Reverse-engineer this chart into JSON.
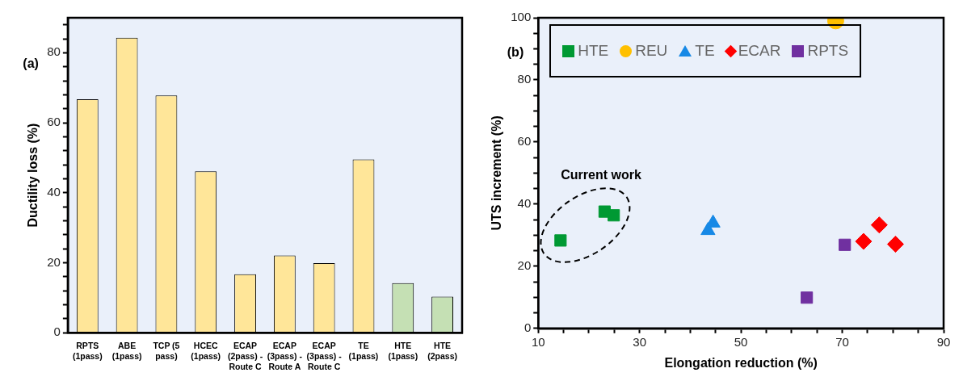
{
  "chart_data": [
    {
      "type": "bar",
      "annotations": [
        "(a)"
      ],
      "ylabel": "Ductility loss (%)",
      "categories": [
        "RPTS (1pass)",
        "ABE (1pass)",
        "TCP (5 pass)",
        "HCEC (1pass)",
        "ECAP (2pass) - Route C",
        "ECAP (3pass) - Route A",
        "ECAP (3pass) - Route C",
        "TE (1pass)",
        "HTE (1pass)",
        "HTE (2pass)"
      ],
      "values": [
        66.7,
        84.3,
        67.8,
        46.1,
        16.7,
        22.1,
        19.9,
        49.5,
        14.2,
        10.3
      ],
      "colors": [
        "#ffe699",
        "#ffe699",
        "#ffe699",
        "#ffe699",
        "#ffe699",
        "#ffe699",
        "#ffe699",
        "#ffe699",
        "#c5e0b4",
        "#c5e0b4"
      ],
      "ylim": [
        0,
        90
      ],
      "yticks": [
        0,
        {
          "value": 4,
          "label": null
        },
        {
          "value": 8,
          "label": null
        },
        {
          "value": 12,
          "label": null
        },
        {
          "value": 16,
          "label": null
        },
        20,
        {
          "value": 24,
          "label": null
        },
        {
          "value": 28,
          "label": null
        },
        {
          "value": 32,
          "label": null
        },
        {
          "value": 36,
          "label": null
        },
        40,
        {
          "value": 44,
          "label": null
        },
        {
          "value": 48,
          "label": null
        },
        {
          "value": 52,
          "label": null
        },
        {
          "value": 56,
          "label": null
        },
        60,
        {
          "value": 64,
          "label": null
        },
        {
          "value": 68,
          "label": null
        },
        {
          "value": 72,
          "label": null
        },
        {
          "value": 76,
          "label": null
        },
        80,
        {
          "value": 84,
          "label": null
        },
        {
          "value": 88,
          "label": null
        }
      ]
    },
    {
      "type": "scatter",
      "xlabel": "Elongation reduction (%)",
      "ylabel": "UTS increment (%)",
      "legend": "top left",
      "annotations": [
        "(b)",
        "Current work"
      ],
      "series": [
        {
          "name": "HTE",
          "color": "#009933",
          "marker": "square",
          "x": [
            14.4,
            23.1,
            24.9
          ],
          "values": [
            28.3,
            37.6,
            36.4
          ]
        },
        {
          "name": "REU",
          "color": "#ffc000",
          "marker": "circle",
          "x": [
            68.7
          ],
          "values": [
            99.0
          ]
        },
        {
          "name": "TE",
          "color": "#1789e6",
          "marker": "triangle",
          "x": [
            43.5,
            44.5
          ],
          "values": [
            31.5,
            33.9
          ]
        },
        {
          "name": "ECAR",
          "color": "#ff0000",
          "marker": "diamond",
          "x": [
            74.2,
            77.3,
            80.5
          ],
          "values": [
            28.0,
            33.3,
            27.1
          ]
        },
        {
          "name": "RPTS",
          "color": "#7030a0",
          "marker": "square",
          "x": [
            70.5,
            63.0
          ],
          "values": [
            26.9,
            9.9
          ]
        }
      ],
      "xlim": [
        10,
        90
      ],
      "xticks": [
        10,
        {
          "value": 15,
          "label": null
        },
        {
          "value": 20,
          "label": null
        },
        {
          "value": 25,
          "label": null
        },
        30,
        {
          "value": 35,
          "label": null
        },
        {
          "value": 40,
          "label": null
        },
        {
          "value": 45,
          "label": null
        },
        50,
        {
          "value": 55,
          "label": null
        },
        {
          "value": 60,
          "label": null
        },
        {
          "value": 65,
          "label": null
        },
        70,
        {
          "value": 75,
          "label": null
        },
        {
          "value": 80,
          "label": null
        },
        {
          "value": 85,
          "label": null
        },
        90
      ],
      "ylim": [
        0,
        100
      ],
      "yticks": [
        0,
        {
          "value": 5,
          "label": null
        },
        {
          "value": 10,
          "label": null
        },
        {
          "value": 15,
          "label": null
        },
        20,
        {
          "value": 25,
          "label": null
        },
        {
          "value": 30,
          "label": null
        },
        {
          "value": 35,
          "label": null
        },
        40,
        {
          "value": 45,
          "label": null
        },
        {
          "value": 50,
          "label": null
        },
        {
          "value": 55,
          "label": null
        },
        60,
        {
          "value": 65,
          "label": null
        },
        {
          "value": 70,
          "label": null
        },
        {
          "value": 75,
          "label": null
        },
        80,
        {
          "value": 85,
          "label": null
        },
        {
          "value": 90,
          "label": null
        },
        {
          "value": 95,
          "label": null
        },
        100
      ]
    }
  ]
}
